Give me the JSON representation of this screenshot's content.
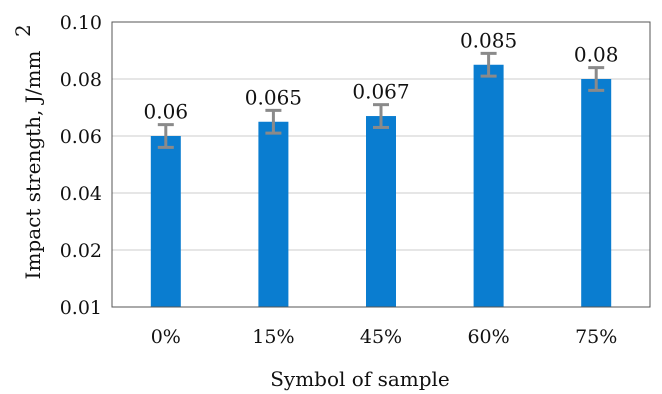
{
  "chart_data": {
    "type": "bar",
    "categories": [
      "0%",
      "15%",
      "45%",
      "60%",
      "75%"
    ],
    "values": [
      0.06,
      0.065,
      0.067,
      0.085,
      0.08
    ],
    "errors": [
      0.004,
      0.004,
      0.004,
      0.004,
      0.004
    ],
    "data_labels": [
      "0.06",
      "0.065",
      "0.067",
      "0.085",
      "0.08"
    ],
    "y_tick_labels": [
      "0.01",
      "0.02",
      "0.04",
      "0.06",
      "0.08",
      "0.10"
    ],
    "xlabel": "Symbol of sample",
    "ylabel": "Impact strength, J/mm",
    "ylabel_superscript": "2",
    "bar_color": "#0a7dd0",
    "error_bar_color": "#8a8a8a",
    "grid": true,
    "grid_color": "#dddddd"
  }
}
